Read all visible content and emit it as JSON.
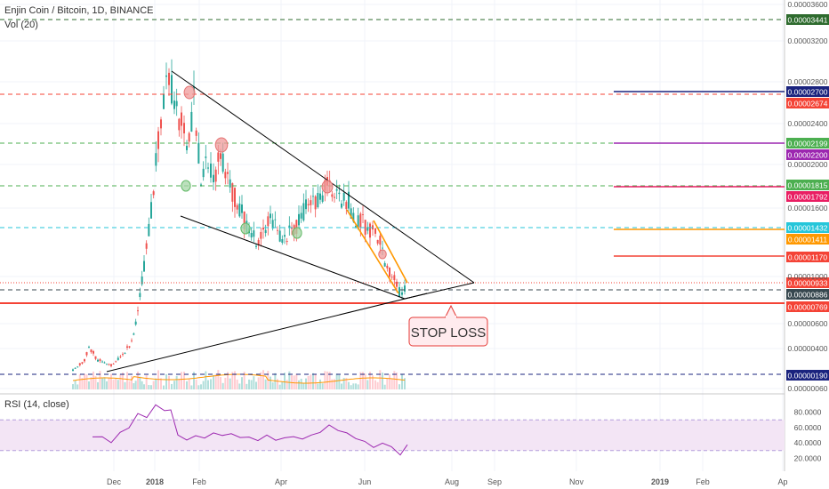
{
  "header": {
    "symbol_label": "Enjin Coin / Bitcoin, 1D, BINANCE",
    "volume_label": "Vol (20)",
    "rsi_label": "RSI (14, close)"
  },
  "annotation": {
    "stop_loss_label": "STOP LOSS"
  },
  "chart_data": {
    "type": "candlestick",
    "title": "Enjin Coin / Bitcoin, 1D, BINANCE",
    "price_axis": {
      "ticks": [
        "0.00003600",
        "0.00003200",
        "0.00002800",
        "0.00002400",
        "0.00002000",
        "0.00001600",
        "0.00001000",
        "0.00000600",
        "0.00000400",
        "0.00000060"
      ],
      "tick_values": [
        3.6e-05,
        3.2e-05,
        2.8e-05,
        2.4e-05,
        2e-05,
        1.6e-05,
        1e-05,
        6e-06,
        4e-06,
        6e-07
      ]
    },
    "time_axis": {
      "labels": [
        "Dec",
        "2018",
        "Feb",
        "Apr",
        "Jun",
        "Aug",
        "Sep",
        "Nov",
        "2019",
        "Feb",
        "Ap"
      ]
    },
    "price_levels": [
      {
        "label": "0.00003441",
        "value": 3.441e-05,
        "color": "#2e6b2e",
        "style": "dashed"
      },
      {
        "label": "0.00002700",
        "value": 2.7e-05,
        "color": "#1a237e",
        "style": "solid"
      },
      {
        "label": "0.00002674",
        "value": 2.674e-05,
        "color": "#f44336",
        "style": "dashed"
      },
      {
        "label": "0.00002199",
        "value": 2.199e-05,
        "color": "#4caf50",
        "style": "dashed"
      },
      {
        "label": "0.00002200",
        "value": 2.2e-05,
        "color": "#9c27b0",
        "style": "solid"
      },
      {
        "label": "0.00001815",
        "value": 1.815e-05,
        "color": "#4caf50",
        "style": "dashed"
      },
      {
        "label": "0.00001792",
        "value": 1.792e-05,
        "color": "#e91e63",
        "style": "solid"
      },
      {
        "label": "0.00001432",
        "value": 1.432e-05,
        "color": "#26c6da",
        "style": "dashed"
      },
      {
        "label": "0.00001411",
        "value": 1.411e-05,
        "color": "#ff9800",
        "style": "solid"
      },
      {
        "label": "0.00001170",
        "value": 1.17e-05,
        "color": "#f44336",
        "style": "solid"
      },
      {
        "label": "0.00000933",
        "value": 9.33e-06,
        "color": "#f44336",
        "style": "dotted"
      },
      {
        "label": "0.00000886",
        "value": 8.86e-06,
        "color": "#37474f",
        "style": "dashed"
      },
      {
        "label": "0.00000769",
        "value": 7.69e-06,
        "color": "#f44336",
        "style": "solid"
      },
      {
        "label": "0.00000190",
        "value": 1.9e-06,
        "color": "#1a237e",
        "style": "dashed"
      }
    ],
    "rsi_axis": {
      "ticks": [
        "80.0000",
        "60.0000",
        "40.0000",
        "20.0000"
      ],
      "tick_values": [
        80,
        60,
        40,
        20
      ],
      "band": [
        30,
        70
      ]
    },
    "colors": {
      "up": "#26a69a",
      "down": "#ef5350",
      "rsi_line": "#9c27b0",
      "rsi_band": "#f3e5f5",
      "volume_ma": "#ff9800",
      "wedge": "#000000",
      "orange_channel": "#ff9800"
    }
  }
}
